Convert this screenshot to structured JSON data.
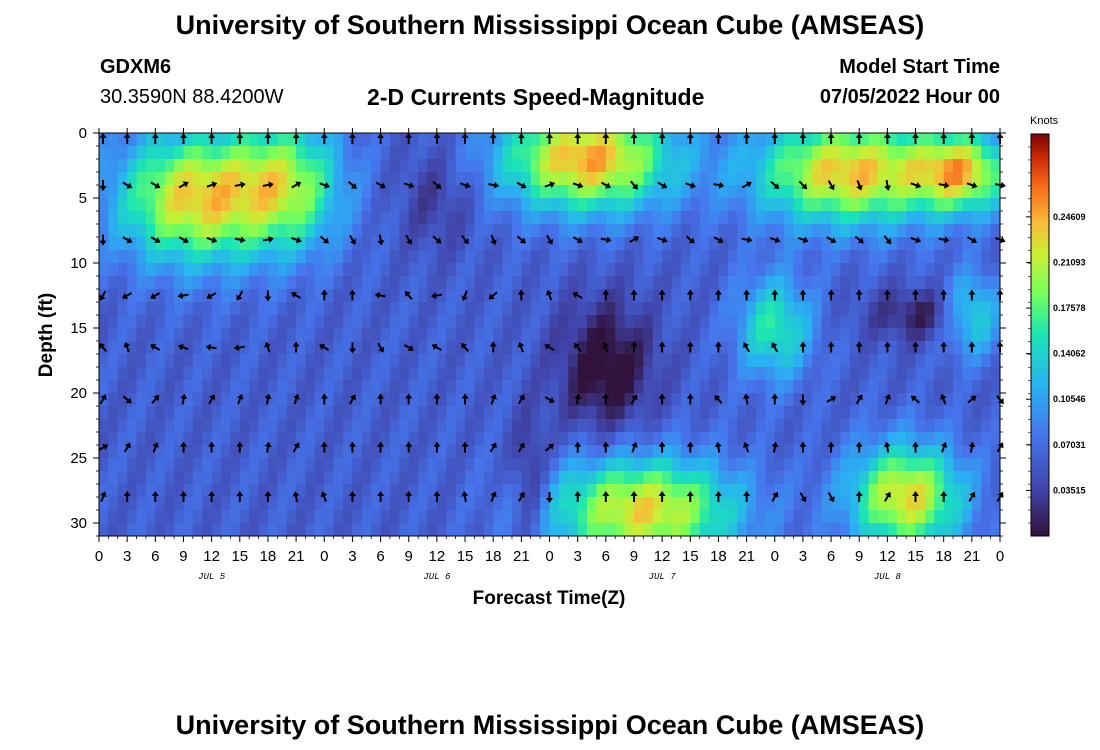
{
  "header": {
    "title": "University of Southern Mississippi Ocean Cube (AMSEAS)",
    "station": "GDXM6",
    "coords": "30.3590N  88.4200W",
    "subtitle": "2-D Currents Speed-Magnitude",
    "model_start_label": "Model Start Time",
    "model_start_value": "07/05/2022 Hour 00"
  },
  "footer": {
    "title_repeat": "University of Southern Mississippi Ocean Cube (AMSEAS)"
  },
  "chart_data": {
    "type": "heatmap",
    "title": "2-D Currents Speed-Magnitude",
    "xlabel": "Forecast Time(Z)",
    "ylabel": "Depth (ft)",
    "x_ticks": [
      "0",
      "3",
      "6",
      "9",
      "12",
      "15",
      "18",
      "21",
      "0",
      "3",
      "6",
      "9",
      "12",
      "15",
      "18",
      "21",
      "0",
      "3",
      "6",
      "9",
      "12",
      "15",
      "18",
      "21",
      "0",
      "3",
      "6",
      "9",
      "12",
      "15",
      "18",
      "21",
      "0"
    ],
    "x_range_hours": [
      0,
      96
    ],
    "date_labels": [
      {
        "label": "JUL 5",
        "hour": 12
      },
      {
        "label": "JUL 6",
        "hour": 36
      },
      {
        "label": "JUL 7",
        "hour": 60
      },
      {
        "label": "JUL 8",
        "hour": 84
      }
    ],
    "y_ticks": [
      "0",
      "5",
      "10",
      "15",
      "20",
      "25",
      "30"
    ],
    "y_range_ft": [
      0,
      31
    ],
    "colorbar": {
      "unit": "Knots",
      "range": [
        0,
        0.31
      ],
      "tick_labels": [
        "0.24609",
        "0.21093",
        "0.17578",
        "0.14062",
        "0.10546",
        "0.07031",
        "0.03515"
      ],
      "tick_values": [
        0.24609,
        0.21093,
        0.17578,
        0.14062,
        0.10546,
        0.07031,
        0.03515
      ]
    },
    "depth_levels_ft": [
      0,
      4,
      8.2,
      12.5,
      16.5,
      20.5,
      24.2,
      28
    ],
    "arrow_step_hours": 3,
    "arrow_rows_deg": [
      [
        270,
        270,
        270,
        270,
        270,
        270,
        270,
        270,
        270,
        270,
        270,
        270,
        270,
        270,
        270,
        270,
        270,
        270,
        270,
        270,
        270,
        270,
        270,
        270,
        270,
        270,
        270,
        270,
        270,
        270,
        270,
        270,
        270
      ],
      [
        90,
        30,
        30,
        330,
        340,
        350,
        350,
        330,
        20,
        40,
        30,
        20,
        40,
        20,
        10,
        30,
        -20,
        20,
        30,
        50,
        30,
        20,
        10,
        330,
        40,
        45,
        60,
        70,
        80,
        20,
        10,
        20,
        10
      ],
      [
        90,
        30,
        30,
        30,
        20,
        10,
        350,
        20,
        40,
        60,
        80,
        60,
        40,
        50,
        70,
        40,
        60,
        30,
        10,
        330,
        20,
        40,
        30,
        10,
        20,
        20,
        30,
        40,
        50,
        20,
        10,
        30,
        20
      ],
      [
        120,
        150,
        150,
        170,
        150,
        120,
        90,
        210,
        270,
        270,
        190,
        230,
        170,
        110,
        140,
        270,
        250,
        210,
        270,
        270,
        270,
        270,
        270,
        270,
        270,
        270,
        270,
        270,
        270,
        270,
        270,
        270,
        270
      ],
      [
        230,
        250,
        210,
        200,
        190,
        170,
        250,
        270,
        210,
        90,
        60,
        30,
        210,
        230,
        270,
        250,
        210,
        230,
        250,
        270,
        270,
        270,
        270,
        240,
        240,
        270,
        270,
        270,
        270,
        270,
        270,
        270,
        270
      ],
      [
        300,
        40,
        310,
        280,
        300,
        290,
        280,
        290,
        270,
        300,
        270,
        270,
        270,
        270,
        290,
        300,
        30,
        280,
        270,
        300,
        270,
        270,
        230,
        260,
        270,
        90,
        330,
        300,
        290,
        220,
        250,
        320,
        50
      ],
      [
        330,
        300,
        290,
        270,
        270,
        270,
        280,
        300,
        270,
        270,
        270,
        270,
        270,
        270,
        300,
        300,
        320,
        270,
        270,
        290,
        270,
        270,
        260,
        250,
        280,
        270,
        270,
        270,
        260,
        270,
        290,
        280,
        300
      ],
      [
        290,
        270,
        270,
        270,
        270,
        270,
        270,
        260,
        250,
        270,
        270,
        270,
        270,
        260,
        290,
        300,
        90,
        270,
        270,
        270,
        270,
        270,
        270,
        270,
        300,
        60,
        60,
        270,
        300,
        270,
        270,
        300,
        300
      ]
    ]
  }
}
